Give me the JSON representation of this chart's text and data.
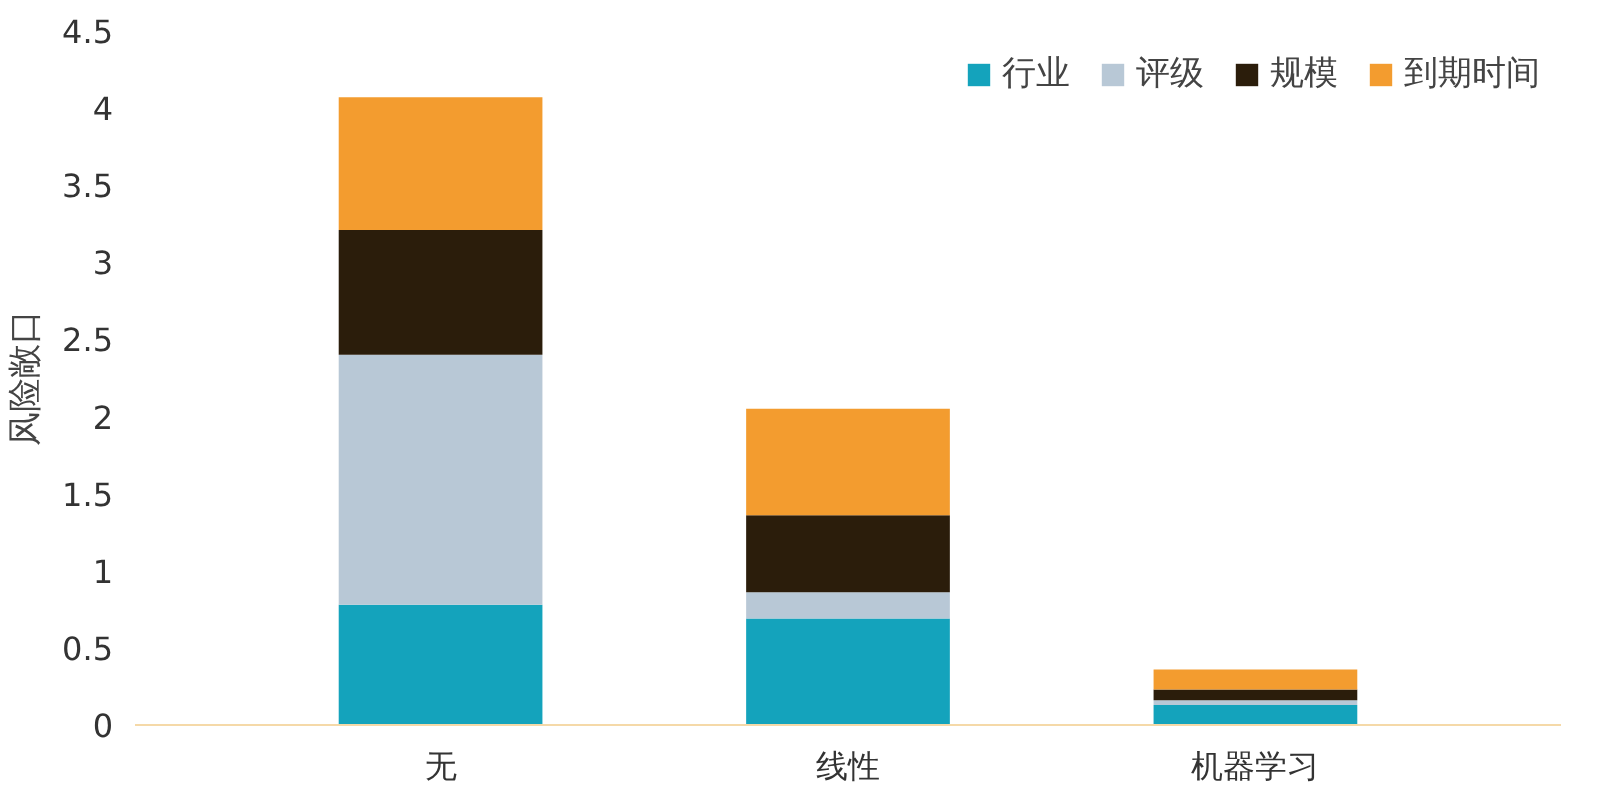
{
  "chart_data": {
    "type": "bar",
    "stacked": true,
    "ylabel": "风险敞口",
    "categories": [
      "无",
      "线性",
      "机器学习"
    ],
    "series": [
      {
        "name": "行业",
        "color": "#14a3bc",
        "values": [
          0.78,
          0.69,
          0.13
        ]
      },
      {
        "name": "评级",
        "color": "#b8c8d6",
        "values": [
          1.62,
          0.17,
          0.03
        ]
      },
      {
        "name": "规模",
        "color": "#2b1d0b",
        "values": [
          0.81,
          0.5,
          0.07
        ]
      },
      {
        "name": "到期时间",
        "color": "#f39c2f",
        "values": [
          0.86,
          0.69,
          0.13
        ]
      }
    ],
    "ylim": [
      0,
      4.5
    ],
    "yticks": [
      0,
      0.5,
      1,
      1.5,
      2,
      2.5,
      3,
      3.5,
      4,
      4.5
    ],
    "grid": false,
    "legend": "top right"
  }
}
